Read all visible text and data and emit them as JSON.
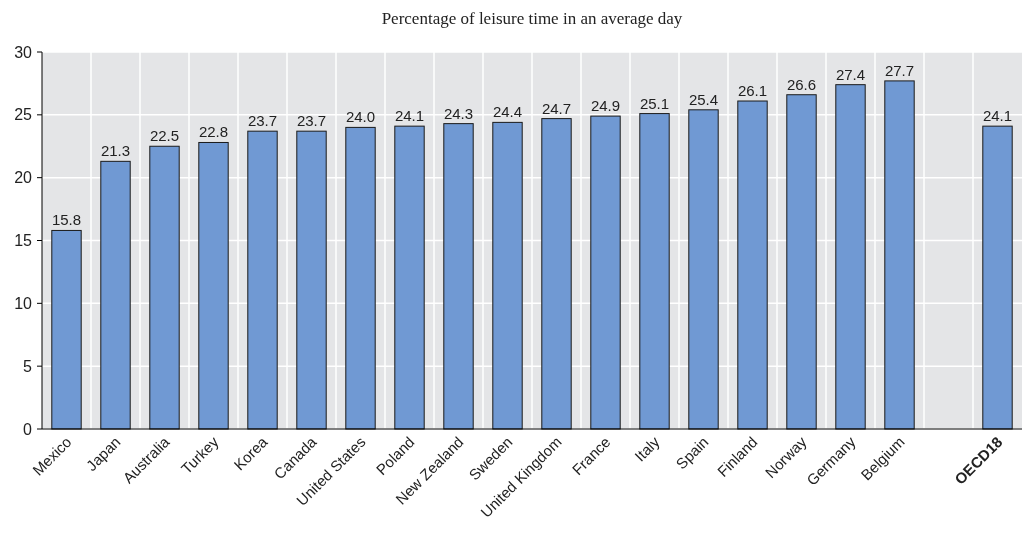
{
  "chart_data": {
    "type": "bar",
    "title": "Percentage of leisure time in an average day",
    "categories": [
      "Mexico",
      "Japan",
      "Australia",
      "Turkey",
      "Korea",
      "Canada",
      "United States",
      "Poland",
      "New Zealand",
      "Sweden",
      "United Kingdom",
      "France",
      "Italy",
      "Spain",
      "Finland",
      "Norway",
      "Germany",
      "Belgium",
      null,
      "OECD18"
    ],
    "values": [
      15.8,
      21.3,
      22.5,
      22.8,
      23.7,
      23.7,
      24.0,
      24.1,
      24.3,
      24.4,
      24.7,
      24.9,
      25.1,
      25.4,
      26.1,
      26.6,
      27.4,
      27.7,
      null,
      24.1
    ],
    "color": "#7099d3",
    "ylim": [
      0,
      30
    ],
    "yticks": [
      0,
      5,
      10,
      15,
      20,
      25,
      30
    ],
    "grid": true,
    "value_labels": [
      "15.8",
      "21.3",
      "22.5",
      "22.8",
      "23.7",
      "23.7",
      "24.0",
      "24.1",
      "24.3",
      "24.4",
      "24.7",
      "24.9",
      "25.1",
      "25.4",
      "26.1",
      "26.6",
      "27.4",
      "27.7",
      null,
      "24.1"
    ]
  }
}
